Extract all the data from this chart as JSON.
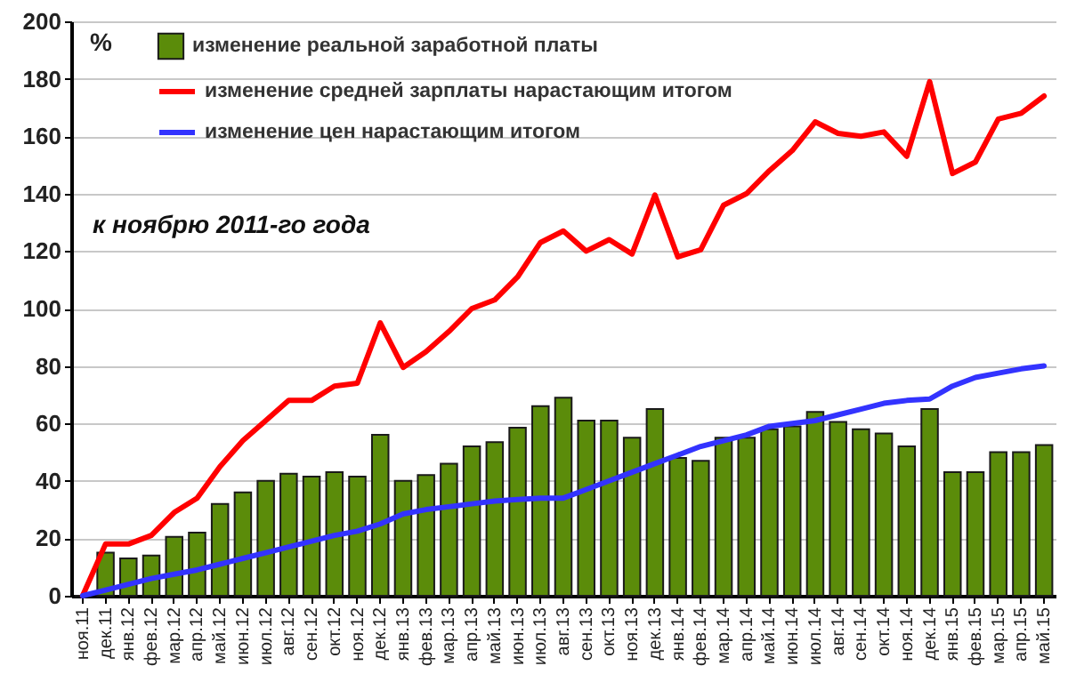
{
  "chart_data": {
    "type": "bar",
    "ylabel": "%",
    "legend": "top",
    "grid": "y",
    "ylim": [
      0,
      200
    ],
    "yticks": [
      0,
      20,
      40,
      60,
      80,
      100,
      120,
      140,
      160,
      180,
      200
    ],
    "annotations": [
      "к ноябрю 2011-го года"
    ],
    "categories": [
      "ноя.11",
      "дек.11",
      "янв.12",
      "фев.12",
      "мар.12",
      "апр.12",
      "май.12",
      "июн.12",
      "июл.12",
      "авг.12",
      "сен.12",
      "окт.12",
      "ноя.12",
      "дек.12",
      "янв.13",
      "фев.13",
      "мар.13",
      "апр.13",
      "май.13",
      "июн.13",
      "июл.13",
      "авг.13",
      "сен.13",
      "окт.13",
      "ноя.13",
      "дек.13",
      "янв.14",
      "фев.14",
      "мар.14",
      "апр.14",
      "май.14",
      "июн.14",
      "июл.14",
      "авг.14",
      "сен.14",
      "окт.14",
      "ноя.14",
      "дек.14",
      "янв.15",
      "фев.15",
      "мар.15",
      "апр.15",
      "май.15"
    ],
    "series": [
      {
        "name": "изменение реальной заработной платы",
        "type": "bar",
        "color": "#5b8c0a",
        "values": [
          0,
          15,
          13,
          14,
          20.5,
          22,
          32,
          36,
          40,
          42.5,
          41.5,
          43,
          41.5,
          56,
          40,
          42,
          46,
          52,
          53.5,
          58.5,
          66,
          69,
          61,
          61,
          55,
          65,
          48,
          47,
          55,
          55,
          58,
          59,
          64,
          60.5,
          58,
          56.5,
          52,
          65,
          43,
          43,
          50,
          50,
          52.5
        ]
      },
      {
        "name": "изменение средней зарплаты нарастающим  итогом",
        "type": "line",
        "color": "#ff0000",
        "values": [
          0,
          18,
          18,
          21,
          29,
          34,
          45,
          54,
          61,
          68,
          68,
          73,
          74,
          95,
          79.5,
          85,
          92,
          100,
          103,
          111,
          123,
          127,
          120,
          124,
          119,
          139.5,
          118,
          120.5,
          136,
          140,
          148,
          155,
          165,
          161,
          160,
          161.5,
          153,
          179,
          147,
          151,
          166,
          168,
          174
        ]
      },
      {
        "name": "изменение цен нарастающим  итогом",
        "type": "line",
        "color": "#3333ff",
        "values": [
          0,
          2,
          4,
          6,
          7.5,
          9,
          11,
          13,
          15,
          17,
          19,
          21,
          22.5,
          25,
          28.5,
          30,
          31,
          32,
          33,
          33.5,
          34,
          34,
          37,
          40,
          43,
          46,
          49,
          52,
          54,
          56,
          59,
          60,
          61,
          63,
          65,
          67,
          68,
          68.5,
          73,
          76,
          77.5,
          79,
          80
        ]
      }
    ]
  }
}
